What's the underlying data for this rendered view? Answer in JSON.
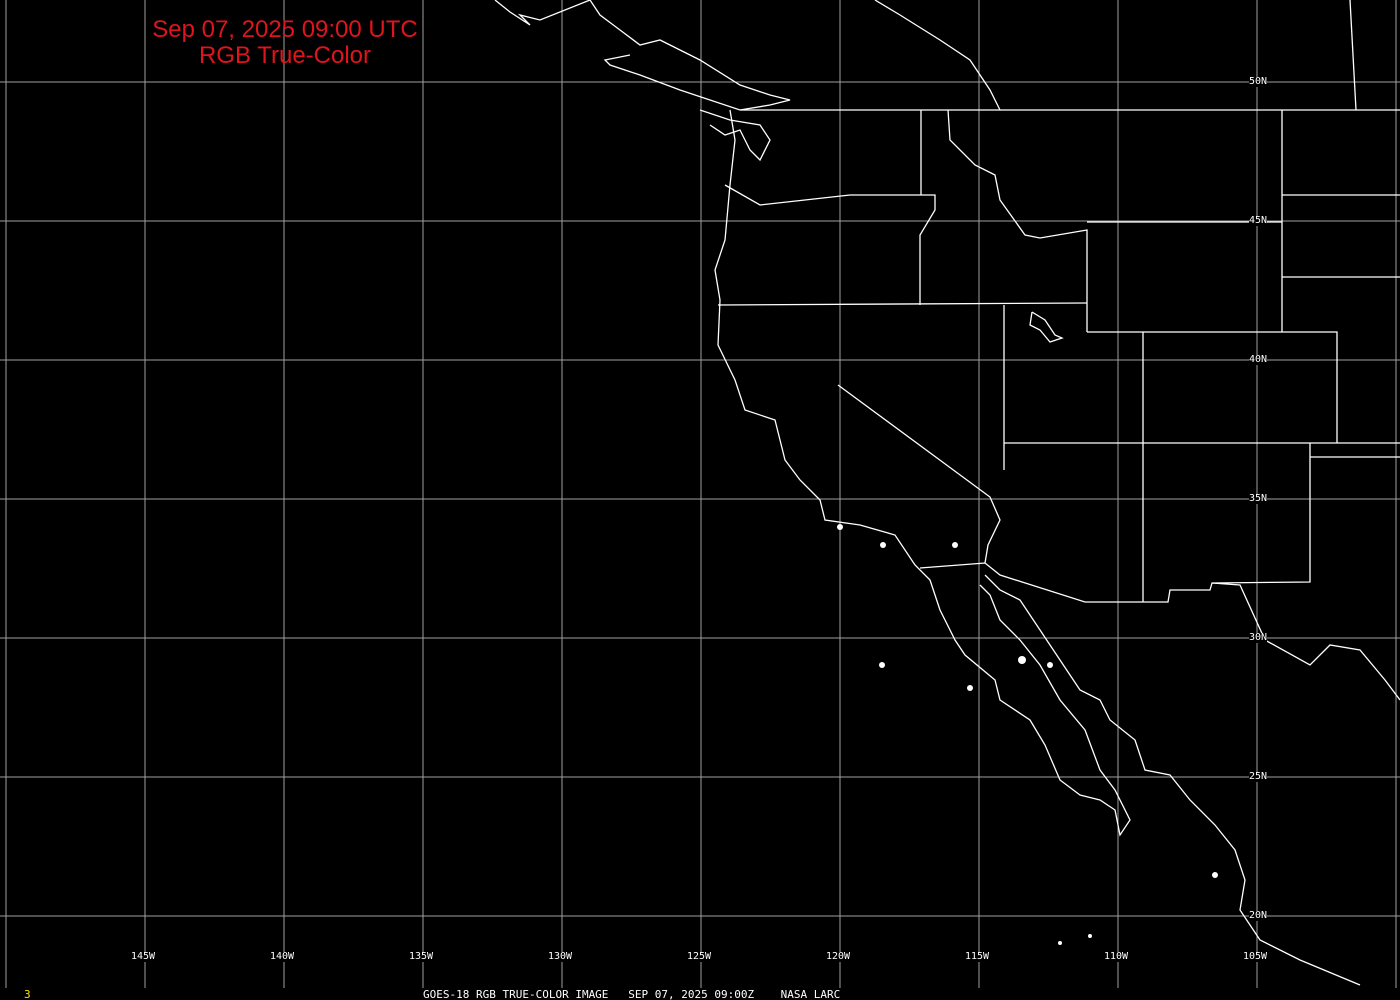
{
  "title": {
    "line1": "Sep 07, 2025 09:00 UTC",
    "line2": "RGB True-Color"
  },
  "title_color": "#e0141c",
  "caption": "GOES-18 RGB TRUE-COLOR IMAGE   SEP 07, 2025 09:00Z    NASA LARC",
  "frame_number": "3",
  "longitude_labels": [
    "145W",
    "140W",
    "135W",
    "130W",
    "125W",
    "120W",
    "115W",
    "110W",
    "105W"
  ],
  "latitude_labels": [
    "50N",
    "45N",
    "40N",
    "35N",
    "30N",
    "25N",
    "20N"
  ],
  "colors": {
    "background": "#000000",
    "grid": "#a0a0a0",
    "boundaries": "#ffffff",
    "frame_number": "#ffe000"
  }
}
